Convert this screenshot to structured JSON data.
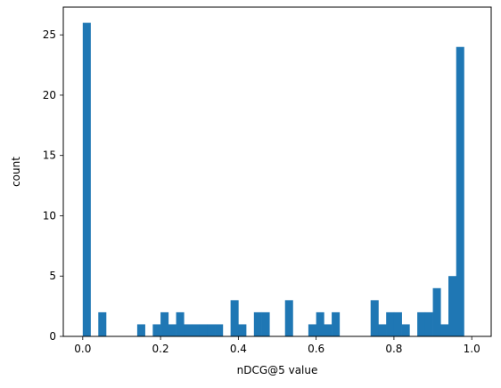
{
  "chart_data": {
    "type": "bar",
    "subtype": "histogram",
    "title": "",
    "xlabel": "nDCG@5 value",
    "ylabel": "count",
    "xlim": [
      -0.05,
      1.05
    ],
    "ylim": [
      0,
      27.3
    ],
    "x_ticks": [
      0.0,
      0.2,
      0.4,
      0.6,
      0.8,
      1.0
    ],
    "x_tick_labels": [
      "0.0",
      "0.2",
      "0.4",
      "0.6",
      "0.8",
      "1.0"
    ],
    "y_ticks": [
      0,
      5,
      10,
      15,
      20,
      25
    ],
    "y_tick_labels": [
      "0",
      "5",
      "10",
      "15",
      "20",
      "25"
    ],
    "bin_width": 0.02,
    "bin_starts": [
      0.0,
      0.02,
      0.04,
      0.06,
      0.08,
      0.1,
      0.12,
      0.14,
      0.16,
      0.18,
      0.2,
      0.22,
      0.24,
      0.26,
      0.28,
      0.3,
      0.32,
      0.34,
      0.36,
      0.38,
      0.4,
      0.42,
      0.44,
      0.46,
      0.48,
      0.5,
      0.52,
      0.54,
      0.56,
      0.58,
      0.6,
      0.62,
      0.64,
      0.66,
      0.68,
      0.7,
      0.72,
      0.74,
      0.76,
      0.78,
      0.8,
      0.82,
      0.84,
      0.86,
      0.88,
      0.9,
      0.92,
      0.94,
      0.96,
      0.98
    ],
    "values": [
      26,
      0,
      2,
      0,
      0,
      0,
      0,
      1,
      0,
      1,
      2,
      1,
      2,
      1,
      1,
      1,
      1,
      1,
      0,
      3,
      1,
      0,
      2,
      2,
      0,
      0,
      3,
      0,
      0,
      1,
      2,
      1,
      2,
      0,
      0,
      0,
      0,
      3,
      1,
      2,
      2,
      1,
      0,
      2,
      2,
      4,
      1,
      5,
      24,
      0
    ],
    "grid": false,
    "legend": "none",
    "bar_color": "#1f77b4"
  }
}
